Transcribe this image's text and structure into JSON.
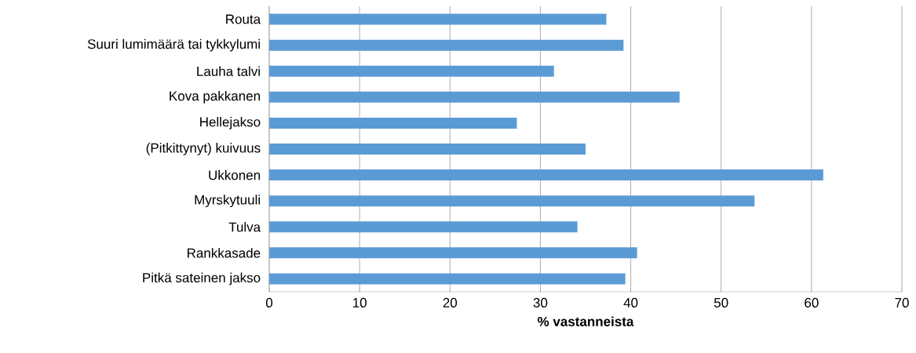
{
  "chart_data": {
    "type": "bar",
    "orientation": "horizontal",
    "xlabel": "% vastanneista",
    "categories": [
      "Routa",
      "Suuri lumimäärä tai tykkylumi",
      "Lauha talvi",
      "Kova pakkanen",
      "Hellejakso",
      "(Pitkittynyt) kuivuus",
      "Ukkonen",
      "Myrskytuuli",
      "Tulva",
      "Rankkasade",
      "Pitkä sateinen jakso"
    ],
    "values": [
      37.3,
      39.2,
      31.5,
      45.4,
      27.4,
      35.0,
      61.3,
      53.7,
      34.1,
      40.7,
      39.4
    ],
    "color": "#5b9bd5",
    "xlim": [
      0,
      70
    ],
    "xticks": [
      0,
      10,
      20,
      30,
      40,
      50,
      60,
      70
    ],
    "grid": "x"
  }
}
